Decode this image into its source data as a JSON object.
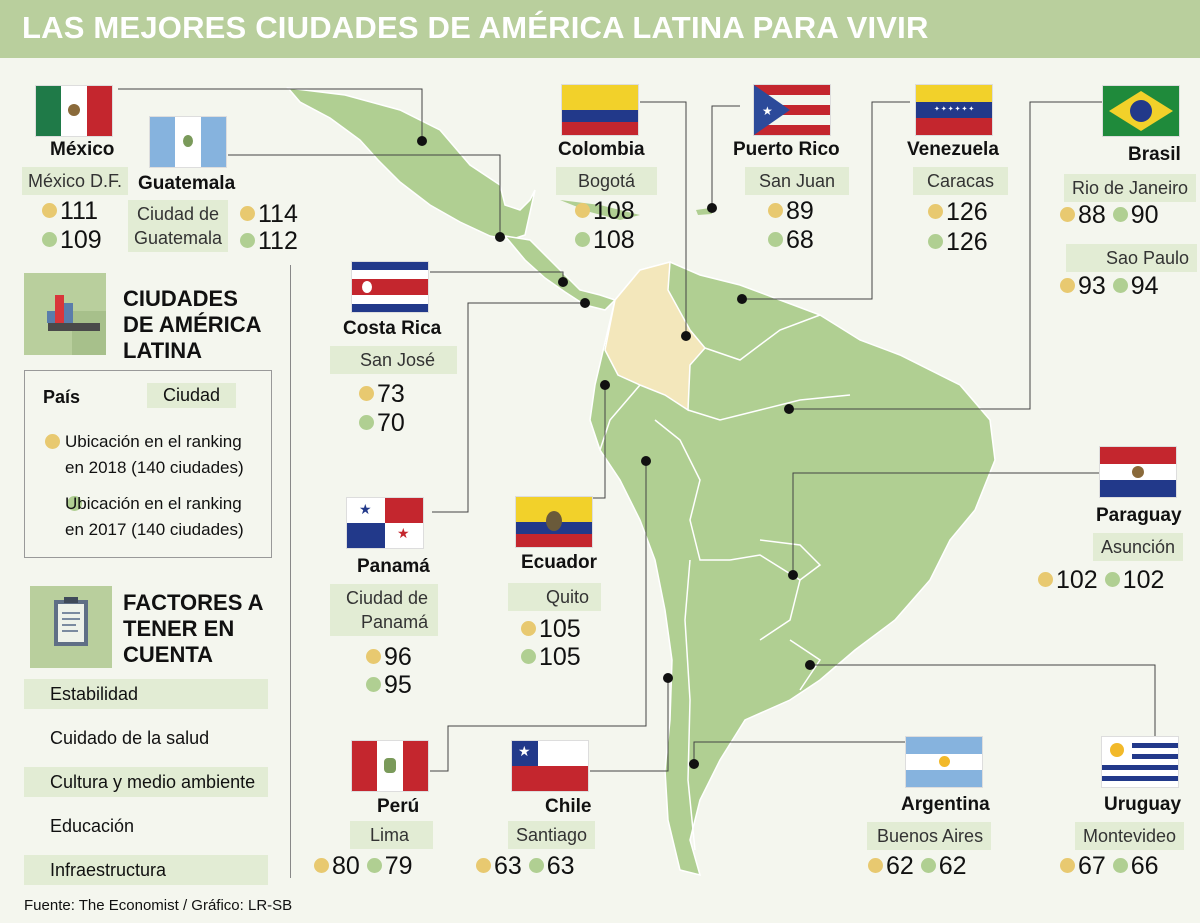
{
  "title": "LAS MEJORES CIUDADES DE AMÉRICA LATINA PARA VIVIR",
  "colors": {
    "title_bar": "#b9cf9d",
    "land": "#b0cf92",
    "colombia": "#f3e7bb",
    "rank_2018": "#e8c970",
    "rank_2017": "#b0cf92"
  },
  "legend": {
    "heading": "CIUDADES DE AMÉRICA LATINA",
    "pais_label": "País",
    "ciudad_label": "Ciudad",
    "rank_2018": "Ubicación en el ranking en 2018 (140 ciudades)",
    "rank_2017": "Ubicación en el ranking en 2017 (140 ciudades)",
    "icon": "bar-chart-icon"
  },
  "factors": {
    "heading": "FACTORES A TENER EN CUENTA",
    "icon": "clipboard-icon",
    "items": [
      "Estabilidad",
      "Cuidado de la salud",
      "Cultura y medio ambiente",
      "Educación",
      "Infraestructura"
    ]
  },
  "countries": {
    "mexico": {
      "name": "México",
      "city": "México D.F.",
      "r2018": "111",
      "r2017": "109"
    },
    "guatemala": {
      "name": "Guatemala",
      "city1": "Ciudad de",
      "city2": "Guatemala",
      "r2018": "114",
      "r2017": "112"
    },
    "colombia": {
      "name": "Colombia",
      "city": "Bogotá",
      "r2018": "108",
      "r2017": "108"
    },
    "puertorico": {
      "name": "Puerto Rico",
      "city": "San Juan",
      "r2018": "89",
      "r2017": "68"
    },
    "venezuela": {
      "name": "Venezuela",
      "city": "Caracas",
      "r2018": "126",
      "r2017": "126"
    },
    "brasil": {
      "name": "Brasil",
      "city1": "Rio de Janeiro",
      "r1_2018": "88",
      "r1_2017": "90",
      "city2": "Sao Paulo",
      "r2_2018": "93",
      "r2_2017": "94"
    },
    "costarica": {
      "name": "Costa Rica",
      "city": "San José",
      "r2018": "73",
      "r2017": "70"
    },
    "panama": {
      "name": "Panamá",
      "city1": "Ciudad de",
      "city2": "Panamá",
      "r2018": "96",
      "r2017": "95"
    },
    "ecuador": {
      "name": "Ecuador",
      "city": "Quito",
      "r2018": "105",
      "r2017": "105"
    },
    "paraguay": {
      "name": "Paraguay",
      "city": "Asunción",
      "r2018": "102",
      "r2017": "102"
    },
    "peru": {
      "name": "Perú",
      "city": "Lima",
      "r2018": "80",
      "r2017": "79"
    },
    "chile": {
      "name": "Chile",
      "city": "Santiago",
      "r2018": "63",
      "r2017": "63"
    },
    "argentina": {
      "name": "Argentina",
      "city": "Buenos Aires",
      "r2018": "62",
      "r2017": "62"
    },
    "uruguay": {
      "name": "Uruguay",
      "city": "Montevideo",
      "r2018": "67",
      "r2017": "66"
    }
  },
  "source": "Fuente:  The Economist / Gráfico: LR-SB"
}
